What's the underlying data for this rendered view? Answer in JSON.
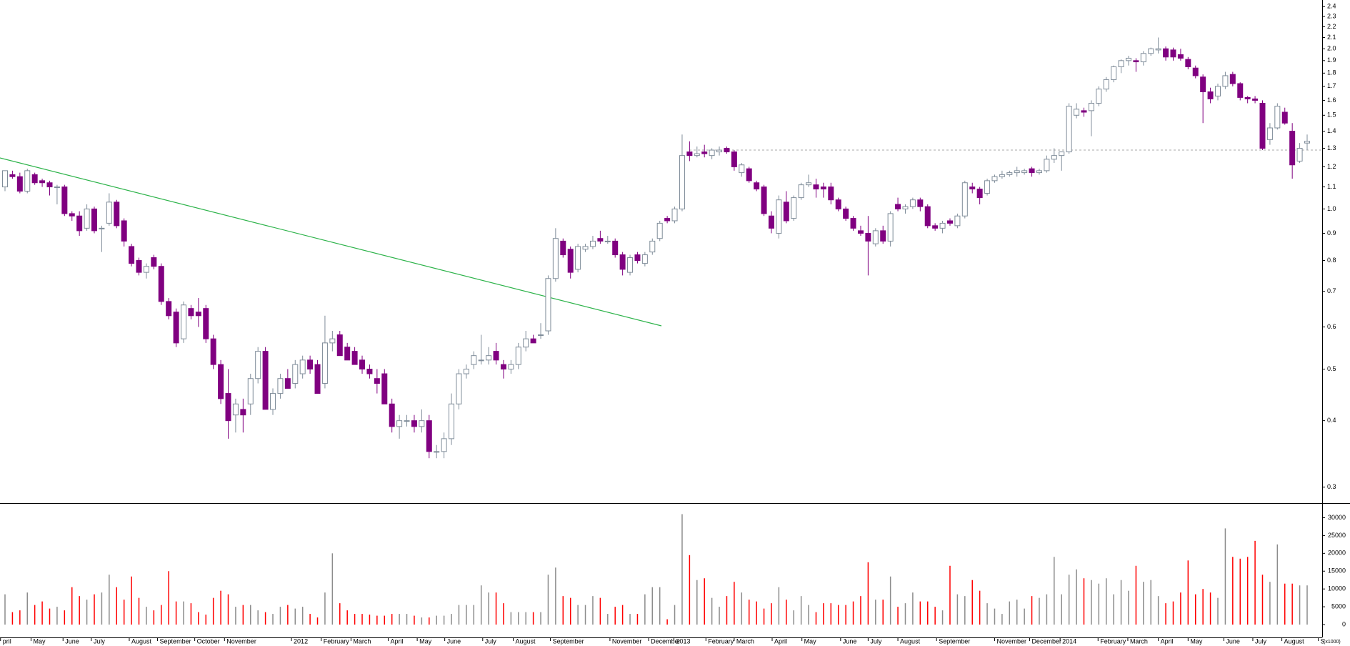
{
  "chart_data": {
    "type": "candlestick",
    "ylim": [
      0.28,
      2.47
    ],
    "log_scale": true,
    "yticks": [
      0.3,
      0.4,
      0.5,
      0.6,
      0.7,
      0.8,
      0.9,
      {
        "value": 1,
        "label": "1.0"
      },
      1.1,
      1.2,
      1.3,
      1.4,
      1.5,
      1.6,
      1.7,
      1.8,
      1.9,
      {
        "value": 2,
        "label": "2.0"
      },
      2.1,
      2.2,
      2.3,
      2.4
    ],
    "up_color": "#ffffff",
    "up_edge": "#7f8c99",
    "down_color": "#800080",
    "reference_line": 1.29,
    "ohlc": [
      [
        1.1,
        1.18,
        1.08,
        1.18
      ],
      [
        1.16,
        1.18,
        1.14,
        1.15
      ],
      [
        1.15,
        1.17,
        1.07,
        1.08
      ],
      [
        1.08,
        1.19,
        1.07,
        1.18
      ],
      [
        1.16,
        1.17,
        1.11,
        1.12
      ],
      [
        1.13,
        1.14,
        1.1,
        1.12
      ],
      [
        1.12,
        1.13,
        1.06,
        1.1
      ],
      [
        1.1,
        1.11,
        1.02,
        1.1
      ],
      [
        1.1,
        1.11,
        0.97,
        0.98
      ],
      [
        0.98,
        0.99,
        0.95,
        0.97
      ],
      [
        0.97,
        0.99,
        0.89,
        0.91
      ],
      [
        0.92,
        1.02,
        0.91,
        1.0
      ],
      [
        1.0,
        1.01,
        0.9,
        0.91
      ],
      [
        0.92,
        0.93,
        0.83,
        0.92
      ],
      [
        0.94,
        1.07,
        0.93,
        1.03
      ],
      [
        1.03,
        1.04,
        0.92,
        0.93
      ],
      [
        0.95,
        0.96,
        0.85,
        0.87
      ],
      [
        0.85,
        0.86,
        0.78,
        0.79
      ],
      [
        0.8,
        0.81,
        0.75,
        0.76
      ],
      [
        0.76,
        0.79,
        0.74,
        0.78
      ],
      [
        0.81,
        0.82,
        0.77,
        0.78
      ],
      [
        0.78,
        0.79,
        0.66,
        0.67
      ],
      [
        0.67,
        0.68,
        0.62,
        0.63
      ],
      [
        0.64,
        0.65,
        0.55,
        0.56
      ],
      [
        0.57,
        0.67,
        0.56,
        0.66
      ],
      [
        0.65,
        0.66,
        0.62,
        0.63
      ],
      [
        0.64,
        0.68,
        0.6,
        0.63
      ],
      [
        0.65,
        0.66,
        0.56,
        0.57
      ],
      [
        0.57,
        0.58,
        0.5,
        0.51
      ],
      [
        0.51,
        0.52,
        0.43,
        0.44
      ],
      [
        0.45,
        0.5,
        0.37,
        0.4
      ],
      [
        0.41,
        0.44,
        0.38,
        0.43
      ],
      [
        0.42,
        0.44,
        0.38,
        0.41
      ],
      [
        0.43,
        0.49,
        0.41,
        0.48
      ],
      [
        0.48,
        0.55,
        0.47,
        0.54
      ],
      [
        0.54,
        0.55,
        0.42,
        0.42
      ],
      [
        0.42,
        0.46,
        0.41,
        0.45
      ],
      [
        0.45,
        0.49,
        0.44,
        0.48
      ],
      [
        0.48,
        0.5,
        0.46,
        0.46
      ],
      [
        0.47,
        0.52,
        0.46,
        0.51
      ],
      [
        0.49,
        0.53,
        0.48,
        0.52
      ],
      [
        0.52,
        0.53,
        0.49,
        0.5
      ],
      [
        0.51,
        0.52,
        0.45,
        0.45
      ],
      [
        0.47,
        0.63,
        0.46,
        0.56
      ],
      [
        0.56,
        0.59,
        0.54,
        0.57
      ],
      [
        0.58,
        0.59,
        0.53,
        0.53
      ],
      [
        0.55,
        0.56,
        0.52,
        0.52
      ],
      [
        0.54,
        0.55,
        0.51,
        0.51
      ],
      [
        0.52,
        0.53,
        0.49,
        0.5
      ],
      [
        0.5,
        0.51,
        0.48,
        0.49
      ],
      [
        0.48,
        0.5,
        0.45,
        0.47
      ],
      [
        0.49,
        0.5,
        0.43,
        0.43
      ],
      [
        0.43,
        0.44,
        0.38,
        0.39
      ],
      [
        0.39,
        0.41,
        0.37,
        0.4
      ],
      [
        0.4,
        0.41,
        0.39,
        0.4
      ],
      [
        0.4,
        0.41,
        0.38,
        0.39
      ],
      [
        0.39,
        0.42,
        0.38,
        0.4
      ],
      [
        0.4,
        0.41,
        0.34,
        0.35
      ],
      [
        0.35,
        0.36,
        0.34,
        0.35
      ],
      [
        0.35,
        0.38,
        0.34,
        0.37
      ],
      [
        0.37,
        0.45,
        0.36,
        0.43
      ],
      [
        0.43,
        0.5,
        0.42,
        0.49
      ],
      [
        0.49,
        0.51,
        0.48,
        0.5
      ],
      [
        0.51,
        0.54,
        0.5,
        0.53
      ],
      [
        0.52,
        0.58,
        0.51,
        0.52
      ],
      [
        0.52,
        0.55,
        0.51,
        0.53
      ],
      [
        0.54,
        0.56,
        0.51,
        0.52
      ],
      [
        0.51,
        0.52,
        0.48,
        0.5
      ],
      [
        0.5,
        0.52,
        0.49,
        0.51
      ],
      [
        0.51,
        0.56,
        0.5,
        0.55
      ],
      [
        0.55,
        0.59,
        0.54,
        0.57
      ],
      [
        0.57,
        0.58,
        0.56,
        0.56
      ],
      [
        0.58,
        0.61,
        0.57,
        0.58
      ],
      [
        0.59,
        0.75,
        0.58,
        0.74
      ],
      [
        0.74,
        0.92,
        0.73,
        0.88
      ],
      [
        0.87,
        0.88,
        0.81,
        0.82
      ],
      [
        0.84,
        0.85,
        0.74,
        0.76
      ],
      [
        0.77,
        0.86,
        0.76,
        0.85
      ],
      [
        0.84,
        0.86,
        0.83,
        0.85
      ],
      [
        0.85,
        0.89,
        0.84,
        0.87
      ],
      [
        0.88,
        0.91,
        0.86,
        0.87
      ],
      [
        0.87,
        0.89,
        0.86,
        0.87
      ],
      [
        0.87,
        0.88,
        0.81,
        0.82
      ],
      [
        0.82,
        0.83,
        0.75,
        0.77
      ],
      [
        0.76,
        0.82,
        0.75,
        0.81
      ],
      [
        0.82,
        0.83,
        0.79,
        0.8
      ],
      [
        0.79,
        0.83,
        0.78,
        0.82
      ],
      [
        0.83,
        0.88,
        0.82,
        0.87
      ],
      [
        0.88,
        0.95,
        0.87,
        0.94
      ],
      [
        0.96,
        0.97,
        0.94,
        0.95
      ],
      [
        0.95,
        1.01,
        0.94,
        1.0
      ],
      [
        1.0,
        1.38,
        0.99,
        1.26
      ],
      [
        1.28,
        1.34,
        1.23,
        1.26
      ],
      [
        1.26,
        1.31,
        1.25,
        1.27
      ],
      [
        1.28,
        1.32,
        1.25,
        1.27
      ],
      [
        1.26,
        1.3,
        1.24,
        1.29
      ],
      [
        1.28,
        1.31,
        1.26,
        1.29
      ],
      [
        1.3,
        1.31,
        1.27,
        1.28
      ],
      [
        1.28,
        1.29,
        1.18,
        1.2
      ],
      [
        1.17,
        1.22,
        1.15,
        1.21
      ],
      [
        1.19,
        1.2,
        1.12,
        1.13
      ],
      [
        1.12,
        1.13,
        1.08,
        1.09
      ],
      [
        1.1,
        1.11,
        0.97,
        0.98
      ],
      [
        0.97,
        0.99,
        0.9,
        0.92
      ],
      [
        0.9,
        1.06,
        0.88,
        1.04
      ],
      [
        1.03,
        1.08,
        0.94,
        0.95
      ],
      [
        0.96,
        1.06,
        0.95,
        1.05
      ],
      [
        1.05,
        1.12,
        1.04,
        1.11
      ],
      [
        1.11,
        1.16,
        1.1,
        1.12
      ],
      [
        1.11,
        1.14,
        1.05,
        1.09
      ],
      [
        1.1,
        1.12,
        1.05,
        1.09
      ],
      [
        1.1,
        1.12,
        1.02,
        1.04
      ],
      [
        1.04,
        1.05,
        0.99,
        1.0
      ],
      [
        1.0,
        1.01,
        0.95,
        0.96
      ],
      [
        0.96,
        0.97,
        0.91,
        0.92
      ],
      [
        0.91,
        0.93,
        0.89,
        0.9
      ],
      [
        0.9,
        0.97,
        0.75,
        0.87
      ],
      [
        0.86,
        0.92,
        0.85,
        0.91
      ],
      [
        0.91,
        0.93,
        0.86,
        0.87
      ],
      [
        0.87,
        0.99,
        0.85,
        0.98
      ],
      [
        1.02,
        1.05,
        0.99,
        1.0
      ],
      [
        1.0,
        1.02,
        0.98,
        1.01
      ],
      [
        1.01,
        1.05,
        1.0,
        1.04
      ],
      [
        1.04,
        1.05,
        0.99,
        1.01
      ],
      [
        1.01,
        1.02,
        0.92,
        0.93
      ],
      [
        0.93,
        0.94,
        0.91,
        0.92
      ],
      [
        0.92,
        0.95,
        0.9,
        0.94
      ],
      [
        0.95,
        0.96,
        0.93,
        0.94
      ],
      [
        0.93,
        0.98,
        0.92,
        0.97
      ],
      [
        0.97,
        1.13,
        0.96,
        1.12
      ],
      [
        1.1,
        1.12,
        1.07,
        1.09
      ],
      [
        1.09,
        1.1,
        1.02,
        1.05
      ],
      [
        1.07,
        1.14,
        1.06,
        1.13
      ],
      [
        1.13,
        1.16,
        1.12,
        1.15
      ],
      [
        1.15,
        1.18,
        1.14,
        1.16
      ],
      [
        1.16,
        1.18,
        1.15,
        1.17
      ],
      [
        1.17,
        1.2,
        1.15,
        1.18
      ],
      [
        1.17,
        1.19,
        1.16,
        1.18
      ],
      [
        1.19,
        1.2,
        1.15,
        1.17
      ],
      [
        1.17,
        1.19,
        1.16,
        1.18
      ],
      [
        1.18,
        1.26,
        1.17,
        1.24
      ],
      [
        1.24,
        1.3,
        1.22,
        1.26
      ],
      [
        1.26,
        1.28,
        1.18,
        1.28
      ],
      [
        1.28,
        1.58,
        1.27,
        1.56
      ],
      [
        1.5,
        1.58,
        1.48,
        1.54
      ],
      [
        1.53,
        1.55,
        1.49,
        1.52
      ],
      [
        1.53,
        1.6,
        1.37,
        1.58
      ],
      [
        1.58,
        1.7,
        1.56,
        1.68
      ],
      [
        1.68,
        1.77,
        1.66,
        1.75
      ],
      [
        1.75,
        1.86,
        1.73,
        1.85
      ],
      [
        1.85,
        1.91,
        1.8,
        1.9
      ],
      [
        1.9,
        1.94,
        1.86,
        1.92
      ],
      [
        1.9,
        1.92,
        1.81,
        1.89
      ],
      [
        1.89,
        1.98,
        1.86,
        1.96
      ],
      [
        1.96,
        2.01,
        1.94,
        2.0
      ],
      [
        1.99,
        2.1,
        1.96,
        2.0
      ],
      [
        2.0,
        2.02,
        1.9,
        1.93
      ],
      [
        1.99,
        2.01,
        1.9,
        1.93
      ],
      [
        1.95,
        2.0,
        1.9,
        1.92
      ],
      [
        1.91,
        1.93,
        1.83,
        1.85
      ],
      [
        1.84,
        1.86,
        1.76,
        1.78
      ],
      [
        1.77,
        1.79,
        1.45,
        1.66
      ],
      [
        1.66,
        1.69,
        1.58,
        1.61
      ],
      [
        1.63,
        1.72,
        1.6,
        1.7
      ],
      [
        1.7,
        1.81,
        1.68,
        1.78
      ],
      [
        1.79,
        1.81,
        1.7,
        1.72
      ],
      [
        1.72,
        1.73,
        1.6,
        1.62
      ],
      [
        1.62,
        1.63,
        1.58,
        1.61
      ],
      [
        1.61,
        1.63,
        1.58,
        1.6
      ],
      [
        1.58,
        1.6,
        1.29,
        1.3
      ],
      [
        1.35,
        1.45,
        1.32,
        1.42
      ],
      [
        1.42,
        1.58,
        1.41,
        1.56
      ],
      [
        1.52,
        1.55,
        1.44,
        1.45
      ],
      [
        1.4,
        1.45,
        1.14,
        1.21
      ],
      [
        1.23,
        1.33,
        1.22,
        1.3
      ],
      [
        1.33,
        1.38,
        1.29,
        1.34
      ]
    ],
    "volume": [
      8500,
      3500,
      4000,
      9000,
      5500,
      6500,
      4500,
      5000,
      4000,
      10500,
      8000,
      7000,
      8500,
      9000,
      14000,
      10500,
      7000,
      13500,
      7500,
      5000,
      4000,
      5500,
      15000,
      6500,
      6500,
      6000,
      3500,
      2800,
      7500,
      9500,
      8500,
      5000,
      5500,
      5500,
      4000,
      3500,
      3000,
      5000,
      5500,
      4500,
      5000,
      3000,
      2000,
      9000,
      20000,
      6000,
      4000,
      3000,
      3000,
      2800,
      2500,
      2500,
      3000,
      3000,
      3000,
      2500,
      2000,
      2000,
      2500,
      2500,
      3000,
      5500,
      5500,
      5500,
      11000,
      9000,
      9000,
      6000,
      3500,
      3500,
      3500,
      3500,
      3500,
      14000,
      16000,
      8000,
      7500,
      5500,
      5500,
      8000,
      7500,
      3000,
      5000,
      5500,
      3000,
      3000,
      8500,
      10500,
      10500,
      1500,
      5500,
      31000,
      19500,
      12500,
      13000,
      7500,
      5000,
      8000,
      12000,
      9000,
      7000,
      6500,
      4500,
      6000,
      10500,
      7000,
      4000,
      8000,
      5500,
      3500,
      6000,
      6000,
      5500,
      5500,
      6500,
      8000,
      17500,
      7000,
      7000,
      13500,
      5000,
      6000,
      9000,
      6500,
      6500,
      5000,
      4000,
      16500,
      8500,
      8000,
      12500,
      9500,
      6000,
      4500,
      3000,
      6500,
      7000,
      4500,
      8000,
      7500,
      8500,
      19000,
      8500,
      14000,
      15500,
      13000,
      12500,
      11500,
      13000,
      8500,
      12500,
      9500,
      16500,
      12000,
      12500,
      8000,
      6000,
      6500,
      9000,
      18000,
      8500,
      10000,
      9000,
      7500,
      27000,
      19000,
      18500,
      19000,
      23500,
      14000,
      12000,
      22500,
      11500,
      11500,
      11000,
      11000
    ],
    "volume_up_color": "#8c8c8c",
    "volume_down_color": "#ff0000",
    "y2lim": [
      -3600,
      34100
    ],
    "y2ticks": [
      0,
      5000,
      10000,
      15000,
      20000,
      25000,
      30000
    ],
    "volume_unit": "(x1000)",
    "xticks": [
      {
        "value": -0.6,
        "label": "pril"
      },
      {
        "value": 3.5,
        "label": "May"
      },
      {
        "value": 7.8,
        "label": "June"
      },
      {
        "value": 11.6,
        "label": "July"
      },
      {
        "value": 16.7,
        "label": "August"
      },
      {
        "value": 20.5,
        "label": "September"
      },
      {
        "value": 25.5,
        "label": "October"
      },
      {
        "value": 29.5,
        "label": "November"
      },
      {
        "value": 38.5,
        "label": "2012"
      },
      {
        "value": 42.5,
        "label": "February"
      },
      {
        "value": 46.5,
        "label": "March"
      },
      {
        "value": 51.5,
        "label": "April"
      },
      {
        "value": 55.4,
        "label": "May"
      },
      {
        "value": 59.1,
        "label": "June"
      },
      {
        "value": 64.2,
        "label": "July"
      },
      {
        "value": 68.3,
        "label": "August"
      },
      {
        "value": 73.3,
        "label": "September"
      },
      {
        "value": 81.3,
        "label": "November"
      },
      {
        "value": 86.5,
        "label": "December"
      },
      {
        "value": 89.9,
        "label": "2013"
      },
      {
        "value": 94.2,
        "label": "February"
      },
      {
        "value": 98.0,
        "label": "March"
      },
      {
        "value": 103.1,
        "label": "April"
      },
      {
        "value": 107.1,
        "label": "May"
      },
      {
        "value": 112.3,
        "label": "June"
      },
      {
        "value": 116.0,
        "label": "July"
      },
      {
        "value": 120.0,
        "label": "August"
      },
      {
        "value": 125.2,
        "label": "September"
      },
      {
        "value": 133.0,
        "label": "November"
      },
      {
        "value": 137.7,
        "label": "December"
      },
      {
        "value": 141.8,
        "label": "2014"
      },
      {
        "value": 146.9,
        "label": "February"
      },
      {
        "value": 150.9,
        "label": "March"
      },
      {
        "value": 155.0,
        "label": "April"
      },
      {
        "value": 159.0,
        "label": "May"
      },
      {
        "value": 163.8,
        "label": "June"
      },
      {
        "value": 167.7,
        "label": "July"
      },
      {
        "value": 171.6,
        "label": "August"
      },
      {
        "value": 176.5,
        "label": "S"
      }
    ]
  }
}
